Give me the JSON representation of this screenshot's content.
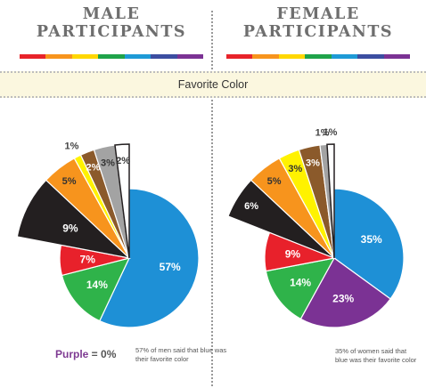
{
  "header": {
    "male_title": [
      "MALE",
      "PARTICIPANTS"
    ],
    "female_title": [
      "FEMALE",
      "PARTICIPANTS"
    ],
    "banner": "Favorite Color"
  },
  "rainbow_colors": [
    "#e8232a",
    "#f7941d",
    "#ffd700",
    "#1fa34a",
    "#1e9ad6",
    "#3c4ea1",
    "#7b3294"
  ],
  "notes": {
    "male": "57% of men said that blue was their favorite color",
    "female": "35% of women said that blue was their favorite color",
    "purple_word": "Purple",
    "purple_rest": " = 0%"
  },
  "chart_data": [
    {
      "type": "pie",
      "title": "MALE PARTICIPANTS",
      "categories": [
        "Blue",
        "Green",
        "Red",
        "Black",
        "Orange",
        "Yellow",
        "Brown",
        "Gray",
        "White"
      ],
      "values": [
        57,
        14,
        7,
        9,
        5,
        1,
        2,
        3,
        2
      ],
      "labels": [
        "57%",
        "14%",
        "7%",
        "9%",
        "5%",
        "1%",
        "2%",
        "3%",
        "2%"
      ],
      "exploded": [
        "Black",
        "Orange",
        "Yellow",
        "Brown",
        "Gray",
        "White"
      ],
      "colors": [
        "#1e90d6",
        "#2fb34a",
        "#e8212b",
        "#231f20",
        "#f7941d",
        "#fff200",
        "#8b5a2b",
        "#a3a3a3",
        "#ffffff"
      ]
    },
    {
      "type": "pie",
      "title": "FEMALE PARTICIPANTS",
      "categories": [
        "Blue",
        "Purple",
        "Green",
        "Red",
        "Black",
        "Orange",
        "Yellow",
        "Brown",
        "Gray",
        "White"
      ],
      "values": [
        35,
        23,
        14,
        9,
        6,
        5,
        3,
        3,
        1,
        1
      ],
      "labels": [
        "35%",
        "23%",
        "14%",
        "9%",
        "6%",
        "5%",
        "3%",
        "3%",
        "1%",
        "1%"
      ],
      "exploded": [
        "Black",
        "Orange",
        "Yellow",
        "Brown",
        "Gray",
        "White"
      ],
      "colors": [
        "#1e90d6",
        "#7b3294",
        "#2fb34a",
        "#e8212b",
        "#231f20",
        "#f7941d",
        "#fff200",
        "#8b5a2b",
        "#a3a3a3",
        "#ffffff"
      ]
    }
  ]
}
